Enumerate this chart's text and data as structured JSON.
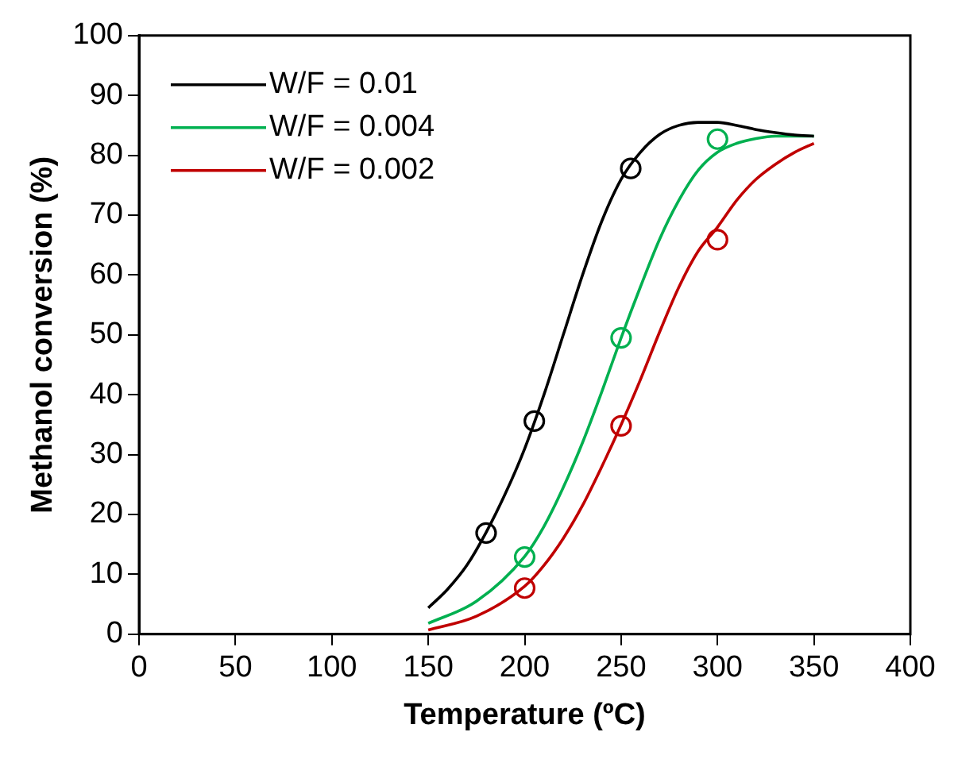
{
  "chart_data": {
    "type": "line",
    "xlabel": "Temperature (ºC)",
    "ylabel": "Methanol conversion (%)",
    "xlim": [
      0,
      400
    ],
    "xticks": [
      0,
      50,
      100,
      150,
      200,
      250,
      300,
      350,
      400
    ],
    "ylim": [
      0,
      100
    ],
    "yticks": [
      0,
      10,
      20,
      30,
      40,
      50,
      60,
      70,
      80,
      90,
      100
    ],
    "grid": false,
    "legend": "top left",
    "series": [
      {
        "name": "W/F = 0.01",
        "color": "#000000",
        "marker": "none",
        "x": [
          150,
          160,
          170,
          180,
          190,
          200,
          210,
          220,
          230,
          240,
          250,
          260,
          270,
          280,
          290,
          300,
          310,
          320,
          330,
          340,
          350
        ],
        "values": [
          4.4,
          7.5,
          11.5,
          17,
          23.5,
          31,
          40,
          50,
          60,
          69,
          76,
          80.5,
          83.5,
          85,
          85.5,
          85.5,
          85,
          84.3,
          83.8,
          83.4,
          83.2
        ]
      },
      {
        "name": "W/F = 0.004",
        "color": "#00b050",
        "marker": "none",
        "x": [
          150,
          175,
          200,
          210,
          220,
          230,
          240,
          250,
          260,
          270,
          280,
          290,
          300,
          310,
          320,
          330,
          340,
          350
        ],
        "values": [
          1.8,
          5.5,
          13,
          18,
          24.5,
          32,
          40.5,
          49.5,
          58,
          66,
          72.5,
          77.5,
          80.5,
          82,
          82.8,
          83.2,
          83.2,
          83.2
        ]
      },
      {
        "name": "W/F = 0.002",
        "color": "#c00000",
        "marker": "none",
        "x": [
          150,
          175,
          200,
          210,
          220,
          230,
          240,
          250,
          260,
          270,
          280,
          290,
          300,
          310,
          320,
          330,
          340,
          350
        ],
        "values": [
          0.7,
          3,
          8,
          11.5,
          16,
          21.5,
          28,
          35,
          42.5,
          50.5,
          58,
          64,
          68,
          72.5,
          76,
          78.5,
          80.5,
          82
        ]
      },
      {
        "type": "scatter",
        "color": "#000000",
        "marker": "circle",
        "x": [
          180,
          205,
          255
        ],
        "values": [
          16.9,
          35.6,
          77.8
        ]
      },
      {
        "type": "scatter",
        "color": "#00b050",
        "marker": "circle",
        "x": [
          200,
          250,
          300
        ],
        "values": [
          12.9,
          49.5,
          82.7
        ]
      },
      {
        "type": "scatter",
        "color": "#c00000",
        "marker": "circle",
        "x": [
          200,
          250,
          300
        ],
        "values": [
          7.7,
          34.8,
          65.9
        ]
      }
    ]
  }
}
